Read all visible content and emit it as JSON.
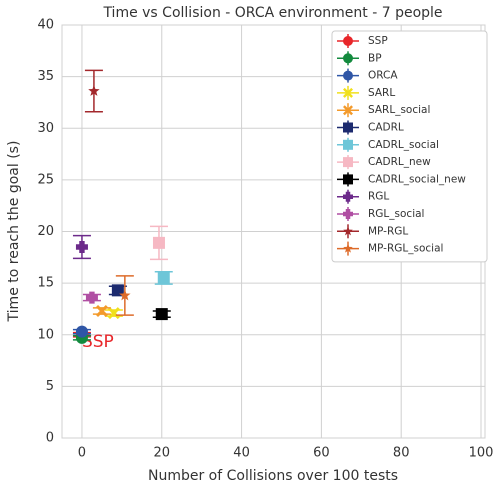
{
  "chart_data": {
    "type": "errorbar-scatter",
    "title": "Time vs Collision - ORCA environment - 7 people",
    "xlabel": "Number of Collisions over 100 tests",
    "ylabel": "Time to reach the goal (s)",
    "annotation": "SSP",
    "xlim": [
      -5,
      101
    ],
    "ylim": [
      0,
      40
    ],
    "xticks": [
      0,
      20,
      40,
      60,
      80,
      100
    ],
    "yticks": [
      0,
      5,
      10,
      15,
      20,
      25,
      30,
      35,
      40
    ],
    "grid": true,
    "legend": "upper right",
    "series": [
      {
        "name": "SSP",
        "color": "#e8262a",
        "marker": "circle",
        "x": [
          0
        ],
        "y": [
          10.0
        ],
        "yerr": [
          0.2
        ]
      },
      {
        "name": "BP",
        "color": "#138a3e",
        "marker": "circle",
        "x": [
          0
        ],
        "y": [
          9.7
        ],
        "yerr": [
          0.2
        ]
      },
      {
        "name": "ORCA",
        "color": "#2f56a6",
        "marker": "circle",
        "x": [
          0
        ],
        "y": [
          10.3
        ],
        "yerr": [
          0.2
        ]
      },
      {
        "name": "SARL",
        "color": "#f0e01c",
        "marker": "x",
        "x": [
          8
        ],
        "y": [
          12.1
        ],
        "yerr": [
          0.3
        ]
      },
      {
        "name": "SARL_social",
        "color": "#f39a2b",
        "marker": "x",
        "x": [
          5
        ],
        "y": [
          12.3
        ],
        "yerr": [
          0.3
        ]
      },
      {
        "name": "CADRL",
        "color": "#1c2a6e",
        "marker": "square",
        "x": [
          9
        ],
        "y": [
          14.3
        ],
        "yerr": [
          0.4
        ]
      },
      {
        "name": "CADRL_social",
        "color": "#6ec6d8",
        "marker": "square",
        "x": [
          20.5
        ],
        "y": [
          15.5
        ],
        "yerr": [
          0.6
        ]
      },
      {
        "name": "CADRL_new",
        "color": "#f6b8c3",
        "marker": "square",
        "x": [
          19.3
        ],
        "y": [
          18.9
        ],
        "yerr": [
          1.6
        ]
      },
      {
        "name": "CADRL_social_new",
        "color": "#000000",
        "marker": "square",
        "x": [
          20
        ],
        "y": [
          12.0
        ],
        "yerr": [
          0.3
        ]
      },
      {
        "name": "RGL",
        "color": "#6c2a8a",
        "marker": "plus",
        "x": [
          0
        ],
        "y": [
          18.5
        ],
        "yerr": [
          1.1
        ]
      },
      {
        "name": "RGL_social",
        "color": "#b04fa3",
        "marker": "plus",
        "x": [
          2.5
        ],
        "y": [
          13.6
        ],
        "yerr": [
          0.3
        ]
      },
      {
        "name": "MP-RGL",
        "color": "#a3282c",
        "marker": "star",
        "x": [
          3
        ],
        "y": [
          33.6
        ],
        "yerr": [
          2.0
        ]
      },
      {
        "name": "MP-RGL_social",
        "color": "#dd6b2a",
        "marker": "star",
        "x": [
          10.75
        ],
        "y": [
          13.8
        ],
        "yerr": [
          1.9
        ]
      }
    ]
  }
}
